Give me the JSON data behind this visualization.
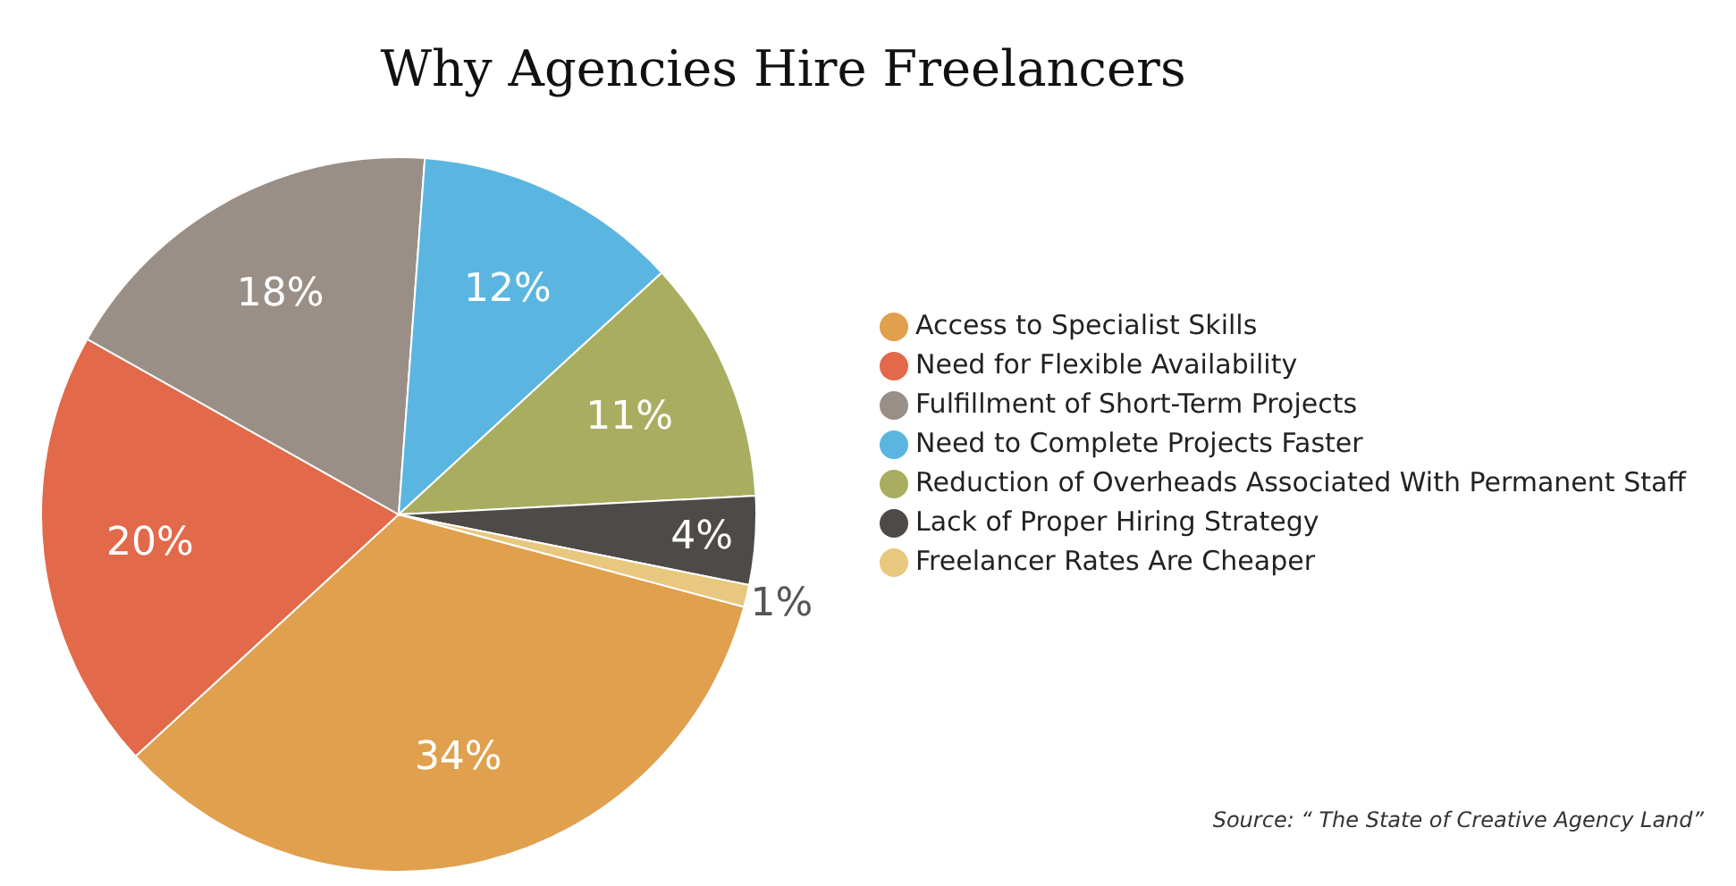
{
  "chart_data": {
    "type": "pie",
    "title": "Why Agencies Hire Freelancers",
    "categories": [
      "Access to Specialist Skills",
      "Need for Flexible Availability",
      "Fulfillment of Short-Term Projects",
      "Need to Complete Projects Faster",
      "Reduction of Overheads Associated With Permanent Staff",
      "Lack of Proper Hiring Strategy",
      "Freelancer Rates Are Cheaper"
    ],
    "values": [
      34,
      20,
      18,
      12,
      11,
      4,
      1
    ],
    "colors": [
      "#e0a04e",
      "#e2694a",
      "#9a8f86",
      "#5ab6e0",
      "#a9ad5f",
      "#4d4a47",
      "#e8c77e"
    ],
    "value_labels": [
      "34%",
      "20%",
      "18%",
      "12%",
      "11%",
      "4%",
      "1%"
    ],
    "legend": "right",
    "annotations": [
      "Source: “ The State of Creative Agency Land”"
    ]
  }
}
